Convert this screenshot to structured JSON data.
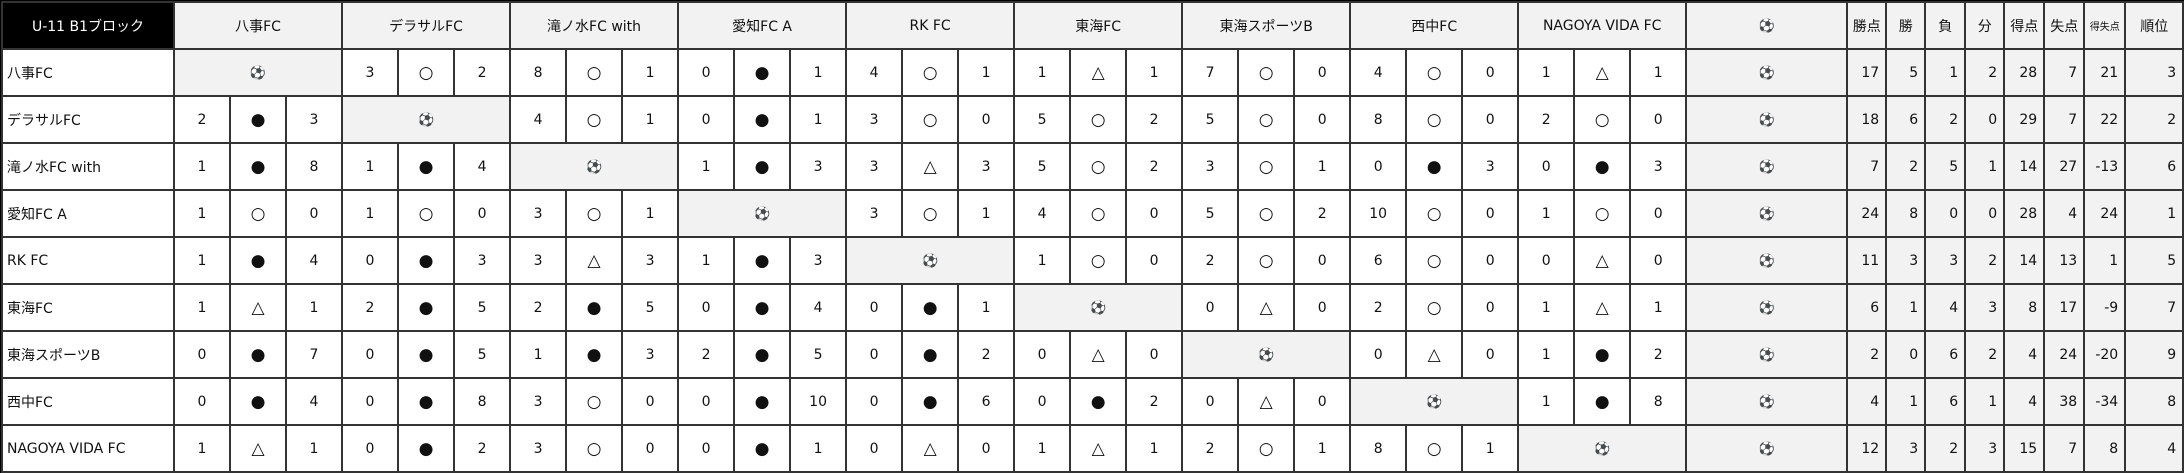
{
  "title": "U-11 B1ブロック",
  "ball_icon": "soccer-ball-icon",
  "teams": [
    "八事FC",
    "デラサルFC",
    "滝ノ水FC with",
    "愛知FC A",
    "RK FC",
    "東海FC",
    "東海スポーツB",
    "西中FC",
    "NAGOYA VIDA FC"
  ],
  "stat_headers": [
    "勝点",
    "勝",
    "負",
    "分",
    "得点",
    "失点",
    "得失点",
    "順位"
  ],
  "legend_symbols": {
    "win": "○",
    "loss": "●",
    "draw": "△"
  },
  "rows": [
    {
      "team": "八事FC",
      "results": [
        null,
        [
          3,
          "○",
          2
        ],
        [
          8,
          "○",
          1
        ],
        [
          0,
          "●",
          1
        ],
        [
          4,
          "○",
          1
        ],
        [
          1,
          "△",
          1
        ],
        [
          7,
          "○",
          0
        ],
        [
          4,
          "○",
          0
        ],
        [
          1,
          "△",
          1
        ]
      ],
      "stats": [
        17,
        5,
        1,
        2,
        28,
        7,
        21,
        3
      ]
    },
    {
      "team": "デラサルFC",
      "results": [
        [
          2,
          "●",
          3
        ],
        null,
        [
          4,
          "○",
          1
        ],
        [
          0,
          "●",
          1
        ],
        [
          3,
          "○",
          0
        ],
        [
          5,
          "○",
          2
        ],
        [
          5,
          "○",
          0
        ],
        [
          8,
          "○",
          0
        ],
        [
          2,
          "○",
          0
        ]
      ],
      "stats": [
        18,
        6,
        2,
        0,
        29,
        7,
        22,
        2
      ]
    },
    {
      "team": "滝ノ水FC with",
      "results": [
        [
          1,
          "●",
          8
        ],
        [
          1,
          "●",
          4
        ],
        null,
        [
          1,
          "●",
          3
        ],
        [
          3,
          "△",
          3
        ],
        [
          5,
          "○",
          2
        ],
        [
          3,
          "○",
          1
        ],
        [
          0,
          "●",
          3
        ],
        [
          0,
          "●",
          3
        ]
      ],
      "stats": [
        7,
        2,
        5,
        1,
        14,
        27,
        -13,
        6
      ]
    },
    {
      "team": "愛知FC A",
      "results": [
        [
          1,
          "○",
          0
        ],
        [
          1,
          "○",
          0
        ],
        [
          3,
          "○",
          1
        ],
        null,
        [
          3,
          "○",
          1
        ],
        [
          4,
          "○",
          0
        ],
        [
          5,
          "○",
          2
        ],
        [
          10,
          "○",
          0
        ],
        [
          1,
          "○",
          0
        ]
      ],
      "stats": [
        24,
        8,
        0,
        0,
        28,
        4,
        24,
        1
      ]
    },
    {
      "team": "RK FC",
      "results": [
        [
          1,
          "●",
          4
        ],
        [
          0,
          "●",
          3
        ],
        [
          3,
          "△",
          3
        ],
        [
          1,
          "●",
          3
        ],
        null,
        [
          1,
          "○",
          0
        ],
        [
          2,
          "○",
          0
        ],
        [
          6,
          "○",
          0
        ],
        [
          0,
          "△",
          0
        ]
      ],
      "stats": [
        11,
        3,
        3,
        2,
        14,
        13,
        1,
        5
      ]
    },
    {
      "team": "東海FC",
      "results": [
        [
          1,
          "△",
          1
        ],
        [
          2,
          "●",
          5
        ],
        [
          2,
          "●",
          5
        ],
        [
          0,
          "●",
          4
        ],
        [
          0,
          "●",
          1
        ],
        null,
        [
          0,
          "△",
          0
        ],
        [
          2,
          "○",
          0
        ],
        [
          1,
          "△",
          1
        ]
      ],
      "stats": [
        6,
        1,
        4,
        3,
        8,
        17,
        -9,
        7
      ]
    },
    {
      "team": "東海スポーツB",
      "results": [
        [
          0,
          "●",
          7
        ],
        [
          0,
          "●",
          5
        ],
        [
          1,
          "●",
          3
        ],
        [
          2,
          "●",
          5
        ],
        [
          0,
          "●",
          2
        ],
        [
          0,
          "△",
          0
        ],
        null,
        [
          0,
          "△",
          0
        ],
        [
          1,
          "●",
          2
        ]
      ],
      "stats": [
        2,
        0,
        6,
        2,
        4,
        24,
        -20,
        9
      ]
    },
    {
      "team": "西中FC",
      "results": [
        [
          0,
          "●",
          4
        ],
        [
          0,
          "●",
          8
        ],
        [
          3,
          "○",
          0
        ],
        [
          0,
          "●",
          10
        ],
        [
          0,
          "●",
          6
        ],
        [
          0,
          "●",
          2
        ],
        [
          0,
          "△",
          0
        ],
        null,
        [
          1,
          "●",
          8
        ]
      ],
      "stats": [
        4,
        1,
        6,
        1,
        4,
        38,
        -34,
        8
      ]
    },
    {
      "team": "NAGOYA VIDA FC",
      "results": [
        [
          1,
          "△",
          1
        ],
        [
          0,
          "●",
          2
        ],
        [
          3,
          "○",
          0
        ],
        [
          0,
          "●",
          1
        ],
        [
          0,
          "△",
          0
        ],
        [
          1,
          "△",
          1
        ],
        [
          2,
          "○",
          1
        ],
        [
          8,
          "○",
          1
        ],
        null
      ],
      "stats": [
        12,
        3,
        2,
        3,
        15,
        7,
        8,
        4
      ]
    }
  ]
}
